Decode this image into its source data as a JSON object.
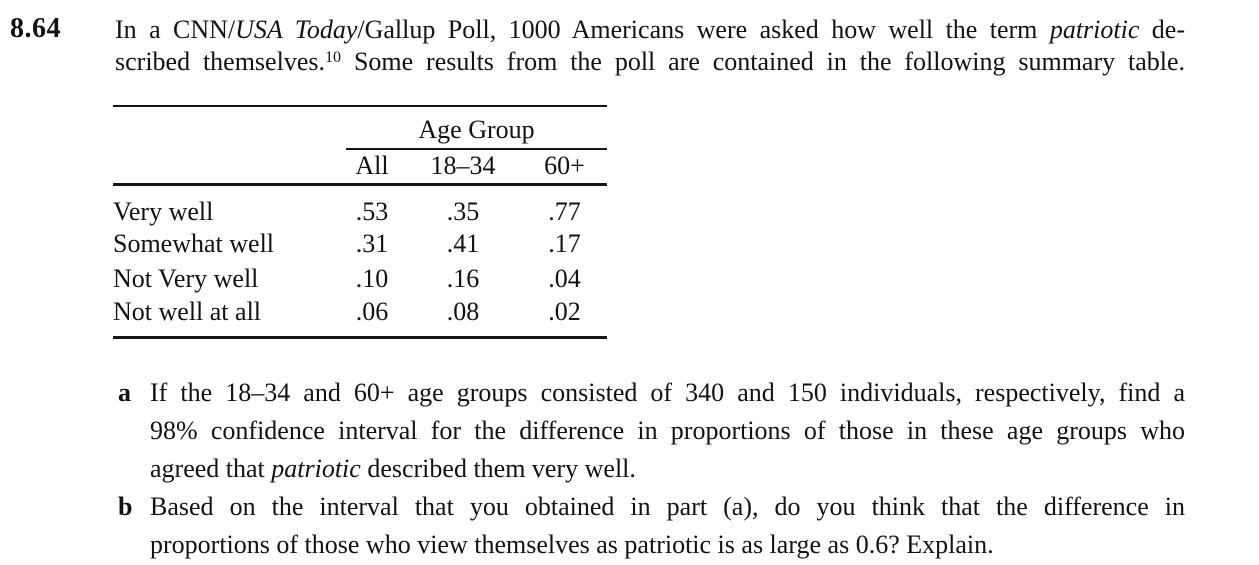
{
  "problem": {
    "number": "8.64",
    "intro_line1": {
      "t1": "In a CNN/",
      "i1": "USA Today",
      "t2": "/Gallup Poll, 1000 Americans were asked how well the term ",
      "i2": "patriotic",
      "t3": " de-"
    },
    "intro_line2": {
      "t1": "scribed themselves.",
      "sup": "10",
      "t2": " Some results from the poll are contained in the following summary table."
    }
  },
  "table": {
    "group_header": "Age Group",
    "columns": [
      "All",
      "18–34",
      "60+"
    ],
    "rows": [
      {
        "label": "Very well",
        "values": [
          ".53",
          ".35",
          ".77"
        ]
      },
      {
        "label": "Somewhat well",
        "values": [
          ".31",
          ".41",
          ".17"
        ]
      },
      {
        "label": "Not Very well",
        "values": [
          ".10",
          ".16",
          ".04"
        ]
      },
      {
        "label": "Not well at all",
        "values": [
          ".06",
          ".08",
          ".02"
        ]
      }
    ]
  },
  "parts": {
    "a": {
      "label": "a",
      "line1": "If the 18–34 and 60+ age groups consisted of 340 and 150 individuals, respectively, find a",
      "line2": "98% confidence interval for the difference in proportions of those in these age groups who",
      "line3": {
        "t1": "agreed that ",
        "i1": "patriotic",
        "t2": " described them very well."
      }
    },
    "b": {
      "label": "b",
      "line1": "Based on the interval that you obtained in part (a), do you think that the difference in",
      "line2": "proportions of those who view themselves as patriotic is as large as 0.6? Explain."
    }
  }
}
